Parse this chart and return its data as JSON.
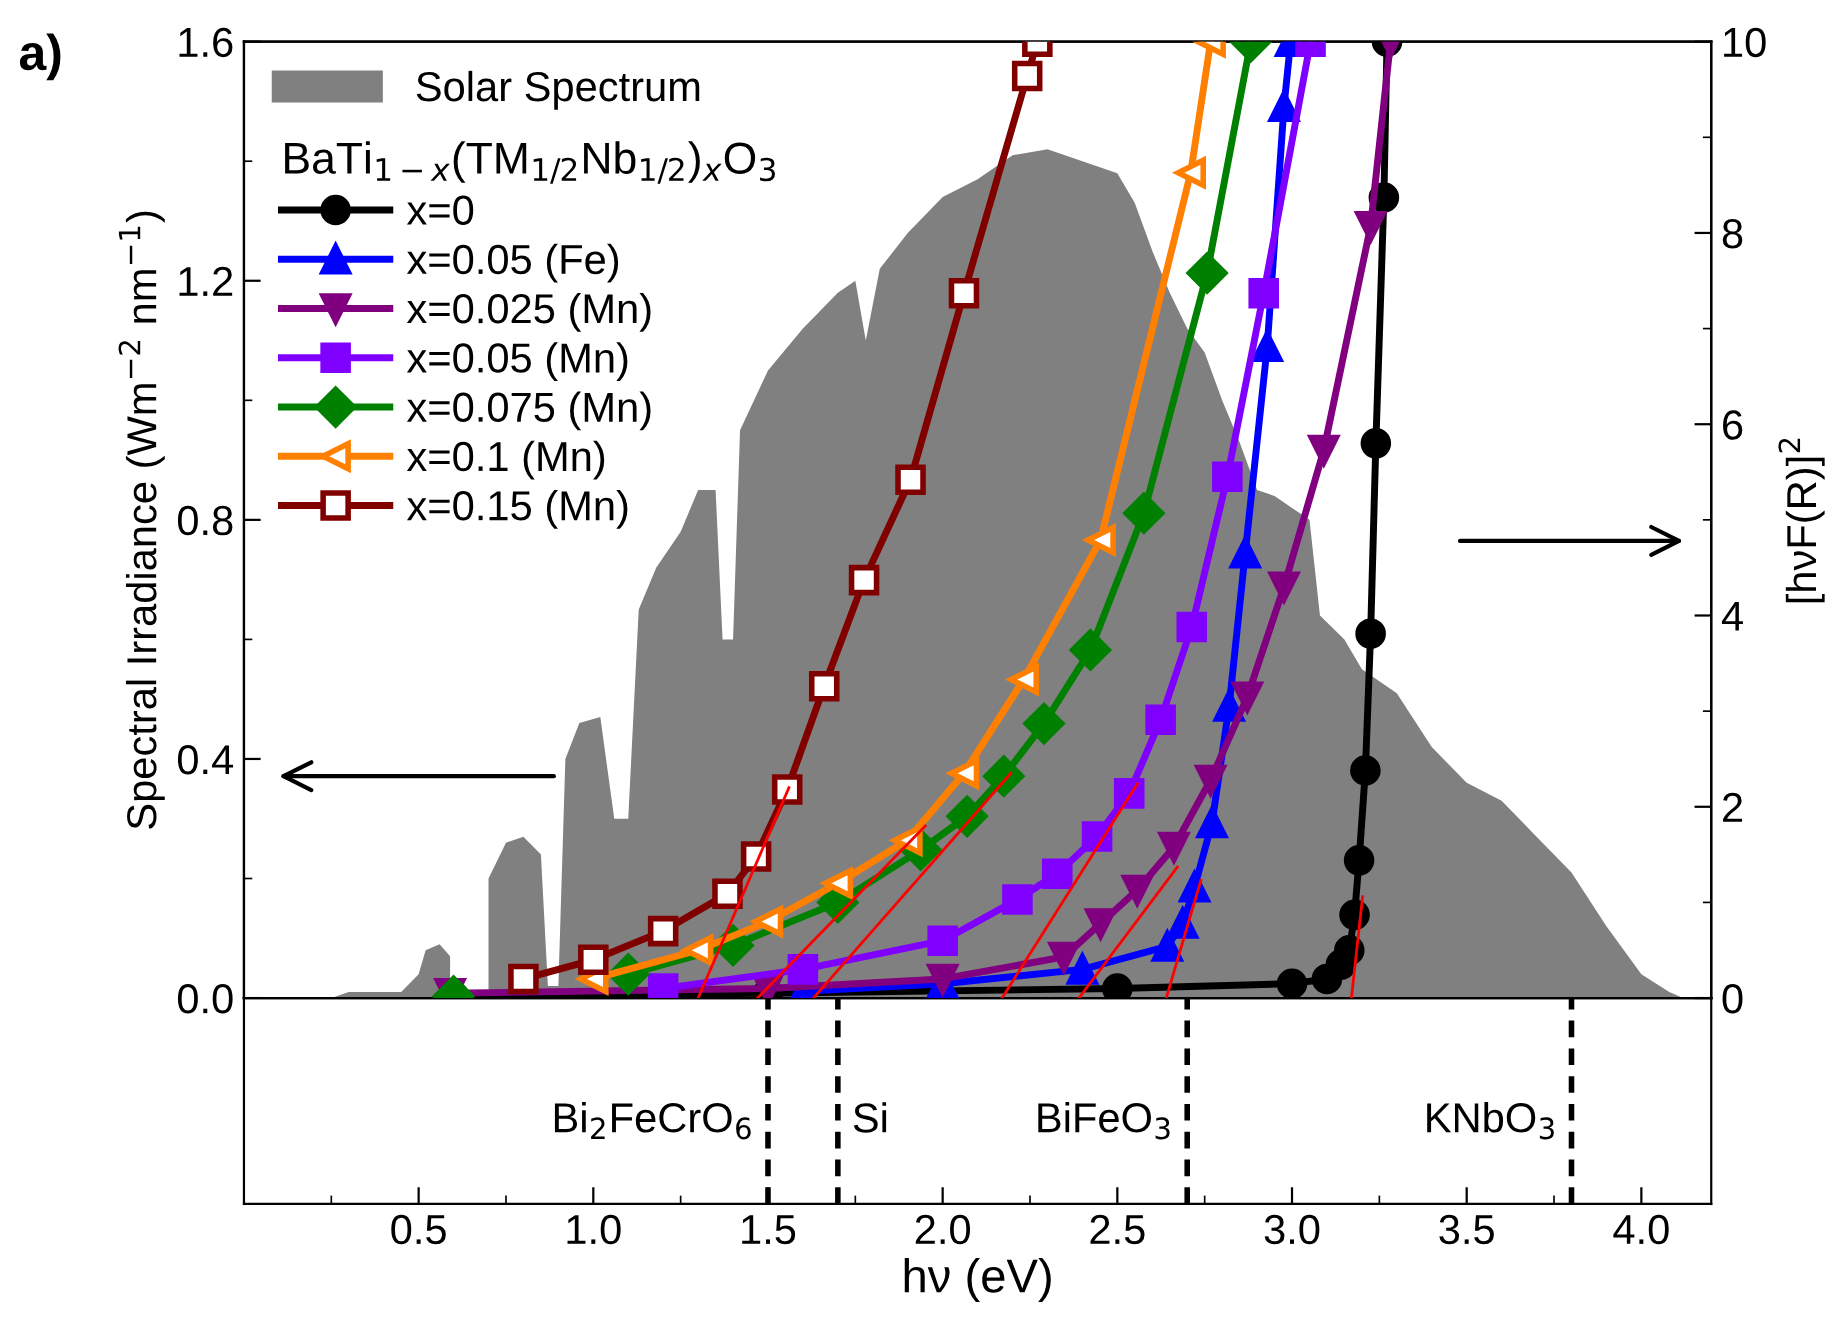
{
  "chart_data": {
    "type": "area",
    "xlabel": "hν (eV)",
    "ylabel": "Spectral Irradiance (Wm$^{−2}$ nm$^{−1}$)",
    "y2label": "[hνF(R)]$^{2}$",
    "legend_title": "BaTi$_{1−x}$(TM$_{1/2}$Nb$_{1/2}$)$_{x}$O$_{3}$",
    "annotations": [
      "a)"
    ],
    "xlim": [
      0,
      4.2
    ],
    "xticks": [
      0.5,
      {
        "value": 1,
        "label": "1.0"
      },
      1.5,
      {
        "value": 2,
        "label": "2.0"
      },
      2.5,
      {
        "value": 3,
        "label": "3.0"
      },
      3.5,
      {
        "value": 4,
        "label": "4.0"
      }
    ],
    "ylim": [
      0,
      1.6
    ],
    "yticks": [
      {
        "value": 0,
        "label": "0.0"
      },
      0.4,
      0.8,
      1.2,
      1.6
    ],
    "y2lim": [
      0,
      10
    ],
    "y2ticks": [
      0,
      2,
      4,
      6,
      8,
      10
    ],
    "grid": false,
    "legend": "top left",
    "line_style": "solid",
    "series": [
      {
        "name": "Solar Spectrum",
        "type": "area",
        "color": "#808080",
        "x": [
          0.25,
          0.3,
          0.45,
          0.5,
          0.52,
          0.56,
          0.59,
          0.6,
          0.68,
          0.7,
          0.75,
          0.8,
          0.85,
          0.87,
          0.9,
          0.92,
          0.96,
          1.02,
          1.06,
          1.1,
          1.13,
          1.18,
          1.25,
          1.3,
          1.35,
          1.37,
          1.4,
          1.42,
          1.5,
          1.6,
          1.7,
          1.75,
          1.78,
          1.82,
          1.9,
          2.0,
          2.1,
          2.2,
          2.3,
          2.4,
          2.5,
          2.55,
          2.6,
          2.65,
          2.7,
          2.75,
          2.8,
          2.85,
          2.9,
          2.95,
          3.0,
          3.05,
          3.08,
          3.15,
          3.2,
          3.3,
          3.4,
          3.5,
          3.6,
          3.7,
          3.8,
          3.9,
          4.0,
          4.08,
          4.12
        ],
        "values": [
          0,
          0.01,
          0.01,
          0.04,
          0.08,
          0.09,
          0.07,
          null,
          null,
          0.2,
          0.26,
          0.27,
          0.24,
          0.02,
          0.02,
          0.4,
          0.46,
          0.47,
          0.3,
          0.3,
          0.65,
          0.72,
          0.78,
          0.85,
          0.85,
          0.6,
          0.6,
          0.95,
          1.05,
          1.12,
          1.18,
          1.2,
          1.1,
          1.22,
          1.28,
          1.34,
          1.37,
          1.41,
          1.42,
          1.4,
          1.38,
          1.33,
          1.25,
          1.18,
          1.12,
          1.08,
          1.0,
          0.93,
          0.85,
          0.84,
          0.82,
          0.8,
          0.64,
          0.6,
          0.55,
          0.51,
          0.42,
          0.36,
          0.33,
          0.27,
          0.21,
          0.12,
          0.04,
          0.01,
          0
        ]
      },
      {
        "name": "x=0",
        "type": "line",
        "axis": "y2",
        "color": "#000000",
        "marker": "circle",
        "x": [
          0.6,
          1.5,
          2.5,
          3.0,
          3.1,
          3.14,
          3.164,
          3.179,
          3.192,
          3.21,
          3.225,
          3.24,
          3.263,
          3.272
        ],
        "values": [
          0.02,
          0.05,
          0.1,
          0.15,
          0.2,
          0.35,
          0.5,
          0.87,
          1.44,
          2.38,
          3.81,
          5.8,
          8.37,
          10
        ]
      },
      {
        "name": "x=0.05 (Fe)",
        "type": "line",
        "axis": "y2",
        "color": "#0000ff",
        "marker": "triangle",
        "x": [
          1.6,
          2.0,
          2.4,
          2.643,
          2.687,
          2.721,
          2.771,
          2.82,
          2.866,
          2.929,
          2.977,
          2.996
        ],
        "values": [
          0.07,
          0.15,
          0.3,
          0.54,
          0.78,
          1.16,
          1.83,
          3.05,
          4.65,
          6.81,
          9.32,
          10
        ]
      },
      {
        "name": "x=0.025 (Mn)",
        "type": "line",
        "axis": "y2",
        "color": "#800080",
        "marker": "triangle_down",
        "x": [
          0.59,
          1.5,
          2.0,
          2.347,
          2.452,
          2.557,
          2.662,
          2.767,
          2.872,
          2.977,
          3.091,
          3.225,
          3.282
        ],
        "values": [
          0.05,
          0.1,
          0.2,
          0.43,
          0.78,
          1.13,
          1.58,
          2.28,
          3.15,
          4.3,
          5.73,
          8.07,
          10
        ]
      },
      {
        "name": "x=0.05 (Mn)",
        "type": "line",
        "axis": "y2",
        "color": "#8000ff",
        "marker": "square",
        "x": [
          1.2,
          1.6,
          2.0,
          2.214,
          2.328,
          2.442,
          2.534,
          2.624,
          2.713,
          2.815,
          2.919,
          3.053
        ],
        "values": [
          0.1,
          0.3,
          0.6,
          1.03,
          1.3,
          1.69,
          2.14,
          2.91,
          3.88,
          5.45,
          7.37,
          10
        ]
      },
      {
        "name": "x=0.075 (Mn)",
        "type": "line",
        "axis": "y2",
        "color": "#008000",
        "marker": "diamond",
        "x": [
          0.6,
          0.8,
          1.1,
          1.4,
          1.7,
          1.937,
          2.07,
          2.175,
          2.29,
          2.423,
          2.576,
          2.757,
          2.882
        ],
        "values": [
          0.02,
          null,
          0.25,
          0.55,
          1.0,
          1.55,
          1.9,
          2.32,
          2.87,
          3.64,
          5.07,
          7.58,
          10
        ]
      },
      {
        "name": "x=0.1 (Mn)",
        "type": "line",
        "axis": "y2",
        "color": "#ff8000",
        "marker": "triangle_left_open",
        "x": [
          1.0,
          1.3,
          1.5,
          1.7,
          1.899,
          2.061,
          2.232,
          2.452,
          2.71,
          2.767
        ],
        "values": [
          0.2,
          0.5,
          0.8,
          1.2,
          1.65,
          2.35,
          3.33,
          4.79,
          8.63,
          10
        ]
      },
      {
        "name": "x=0.15 (Mn)",
        "type": "line",
        "axis": "y2",
        "color": "#800000",
        "marker": "square_open",
        "x": [
          0.8,
          1.0,
          1.2,
          1.384,
          1.466,
          1.555,
          1.661,
          1.775,
          1.908,
          2.061,
          2.242,
          2.271
        ],
        "values": [
          0.2,
          0.4,
          0.7,
          1.09,
          1.48,
          2.18,
          3.26,
          4.37,
          5.42,
          7.37,
          9.64,
          10
        ]
      },
      {
        "type": "line",
        "axis": "y2",
        "color": "#ff0000",
        "x": [
          1.3,
          1.56
        ],
        "values": [
          0,
          2.2
        ]
      },
      {
        "type": "line",
        "axis": "y2",
        "color": "#ff0000",
        "x": [
          1.47,
          1.95
        ],
        "values": [
          0,
          1.8
        ]
      },
      {
        "type": "line",
        "axis": "y2",
        "color": "#ff0000",
        "x": [
          1.63,
          2.195
        ],
        "values": [
          0,
          2.35
        ]
      },
      {
        "type": "line",
        "axis": "y2",
        "color": "#ff0000",
        "x": [
          2.17,
          2.557
        ],
        "values": [
          0,
          2.24
        ]
      },
      {
        "type": "line",
        "axis": "y2",
        "color": "#ff0000",
        "x": [
          2.39,
          2.672
        ],
        "values": [
          0,
          1.37
        ]
      },
      {
        "type": "line",
        "axis": "y2",
        "color": "#ff0000",
        "x": [
          2.64,
          2.739
        ],
        "values": [
          0,
          1.23
        ]
      },
      {
        "type": "line",
        "axis": "y2",
        "color": "#ff0000",
        "x": [
          3.17,
          3.202
        ],
        "values": [
          0,
          1.06
        ]
      }
    ],
    "ref_lines": [
      {
        "axis": "x",
        "value": 1.5,
        "label": "Bi$_{2}$FeCrO$_{6}$",
        "color": "#000000",
        "line_style": "dashed"
      },
      {
        "axis": "x",
        "value": 1.7,
        "label": "Si",
        "color": "#000000",
        "line_style": "dashed"
      },
      {
        "axis": "x",
        "value": 2.7,
        "label": "BiFeO$_{3}$",
        "color": "#000000",
        "line_style": "dashed"
      },
      {
        "axis": "x",
        "value": 3.8,
        "label": "KNbO$_{3}$",
        "color": "#000000",
        "line_style": "dashed"
      }
    ]
  }
}
